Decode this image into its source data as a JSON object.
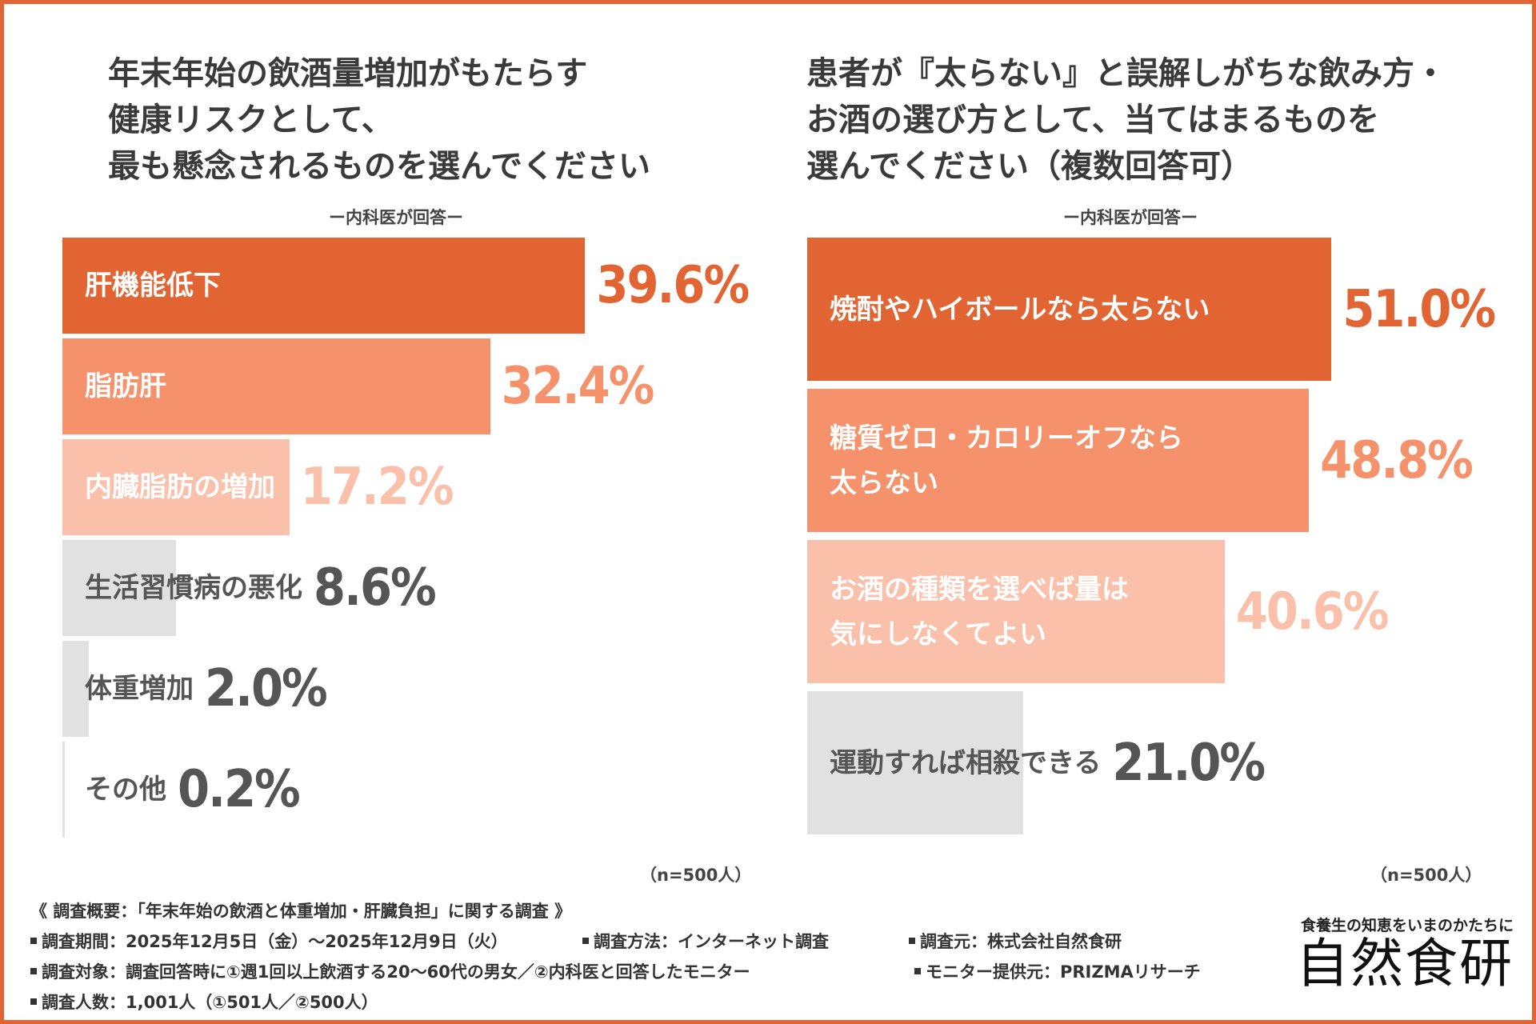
{
  "accent_color": "#E36433",
  "left": {
    "title_lines": [
      "年末年始の飲酒量増加がもたらす",
      "健康リスクとして、",
      "最も懸念されるものを選んでください"
    ],
    "subtitle": "ー内科医が回答ー",
    "n_label": "（n=500人）"
  },
  "right": {
    "title_lines": [
      "患者が『太らない』と誤解しがちな飲み方・",
      "お酒の選び方として、当てはまるものを",
      "選んでください（複数回答可）"
    ],
    "subtitle": "ー内科医が回答ー",
    "n_label": "（n=500人）"
  },
  "chart_data": [
    {
      "type": "bar",
      "orientation": "horizontal",
      "title": "年末年始の飲酒量増加がもたらす健康リスクとして、最も懸念されるものを選んでください",
      "subtitle": "ー内科医が回答ー",
      "categories": [
        "肝機能低下",
        "脂肪肝",
        "内臓脂肪の増加",
        "生活習慣病の悪化",
        "体重増加",
        "その他"
      ],
      "values": [
        39.6,
        32.4,
        17.2,
        8.6,
        2.0,
        0.2
      ],
      "value_labels": [
        "39.6%",
        "32.4%",
        "17.2%",
        "8.6%",
        "2.0%",
        "0.2%"
      ],
      "bar_colors": [
        "#E36433",
        "#F6926B",
        "#FBC0AA",
        "#E1E1E1",
        "#E1E1E1",
        "#E1E1E1"
      ],
      "label_colors": [
        "#ffffff",
        "#ffffff",
        "#ffffff",
        "#555555",
        "#555555",
        "#555555"
      ],
      "value_colors": [
        "#E36433",
        "#F6926B",
        "#FBC0AA",
        "#555555",
        "#555555",
        "#555555"
      ],
      "unit": "%",
      "n": "n=500人"
    },
    {
      "type": "bar",
      "orientation": "horizontal",
      "title": "患者が『太らない』と誤解しがちな飲み方・お酒の選び方として、当てはまるものを選んでください（複数回答可）",
      "subtitle": "ー内科医が回答ー",
      "categories": [
        "焼酎やハイボールなら太らない",
        "糖質ゼロ・カロリーオフなら\n太らない",
        "お酒の種類を選べば量は\n気にしなくてよい",
        "運動すれば相殺できる"
      ],
      "values": [
        51.0,
        48.8,
        40.6,
        21.0
      ],
      "value_labels": [
        "51.0%",
        "48.8%",
        "40.6%",
        "21.0%"
      ],
      "bar_colors": [
        "#E36433",
        "#F6926B",
        "#FBC0AA",
        "#E1E1E1"
      ],
      "label_colors": [
        "#ffffff",
        "#ffffff",
        "#ffffff",
        "#555555"
      ],
      "value_colors": [
        "#E36433",
        "#F6926B",
        "#FBC0AA",
        "#555555"
      ],
      "unit": "%",
      "n": "n=500人"
    }
  ],
  "summary": {
    "heading": "《 調査概要：「年末年始の飲酒と体重増加・肝臓負担」に関する調査 》",
    "period": "調査期間：2025年12月5日（金）〜2025年12月9日（火）",
    "method": "調査方法：インターネット調査",
    "source": "調査元：株式会社自然食研",
    "target": "調査対象：調査回答時に①週1回以上飲酒する20〜60代の男女／②内科医と回答したモニター",
    "provider": "モニター提供元：PRIZMAリサーチ",
    "count": "調査人数：1,001人（①501人／②500人）"
  },
  "brand": {
    "tagline": "食養生の知恵をいまのかたちに",
    "logo": "自然食研"
  }
}
